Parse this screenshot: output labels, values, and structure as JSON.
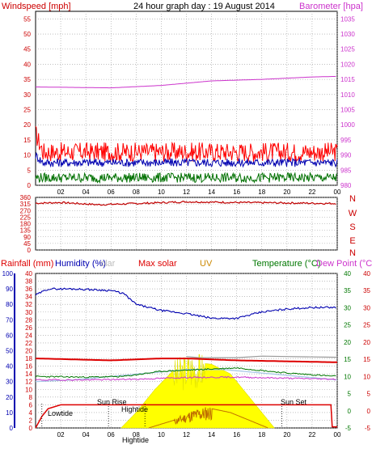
{
  "header": {
    "left_label": "Windspeed [mph]",
    "title": "24 hour graph day : 19 August 2014",
    "right_label": "Barometer [hpa]"
  },
  "rain_panel_labels": {
    "rainfall": "Rainfall (mm)",
    "humidity": "Humidity (%)",
    "solar": "olar",
    "max_solar": "Max solar",
    "uv": "UV",
    "temperature": "Temperature (°C)",
    "dew_point": "Dew Point (°C)"
  },
  "events": {
    "lowtide": "Lowtide",
    "sun_rise": "Sun Rise",
    "hightide": "Hightide",
    "sun_set": "Sun Set",
    "hightide2": "Hightide"
  },
  "colors": {
    "wind_gust": "#ff0000",
    "wind_avg": "#0000b0",
    "wind_low": "#007000",
    "barometer": "#cc33cc",
    "direction": "#c00000",
    "humidity": "#0000b0",
    "rainfall": "#dd0000",
    "max_solar": "#dd0000",
    "solar": "#ffff00",
    "uv": "#c07000",
    "temperature": "#007700",
    "dew_point": "#cc33cc",
    "light_blue": "#a8c8e8",
    "grey": "#999999"
  },
  "chart_data": [
    {
      "type": "line",
      "panel": "wind-barometer",
      "x_ticks": [
        "02",
        "04",
        "06",
        "08",
        "10",
        "12",
        "14",
        "16",
        "18",
        "20",
        "22",
        "00"
      ],
      "left_axis": {
        "label": "Windspeed [mph]",
        "ticks": [
          0,
          5,
          10,
          15,
          20,
          25,
          30,
          35,
          40,
          45,
          50,
          55
        ],
        "ylim": [
          0,
          57.5
        ]
      },
      "right_axis": {
        "label": "Barometer [hpa]",
        "ticks": [
          980,
          985,
          990,
          995,
          1000,
          1005,
          1010,
          1015,
          1020,
          1025,
          1030,
          1035
        ],
        "ylim": [
          980,
          1037.5
        ]
      },
      "series": [
        {
          "name": "gust",
          "baseline": 11,
          "noise": 3.2,
          "axis": "left",
          "color": "#ff0000"
        },
        {
          "name": "average",
          "baseline": 7.5,
          "noise": 1.4,
          "axis": "left",
          "color": "#0000b0"
        },
        {
          "name": "low",
          "baseline": 2.5,
          "noise": 1.6,
          "axis": "left",
          "color": "#007000"
        },
        {
          "name": "barometer",
          "points": [
            [
              0,
              1012.5
            ],
            [
              6,
              1012.2
            ],
            [
              10,
              1013
            ],
            [
              14,
              1014.5
            ],
            [
              18,
              1015
            ],
            [
              22,
              1015.8
            ],
            [
              24,
              1016
            ]
          ],
          "axis": "right",
          "color": "#cc33cc"
        }
      ]
    },
    {
      "type": "line",
      "panel": "wind-direction",
      "x_ticks": [
        "02",
        "04",
        "06",
        "08",
        "10",
        "12",
        "14",
        "16",
        "18",
        "20",
        "22",
        "00"
      ],
      "left_axis": {
        "ticks": [
          0,
          45,
          90,
          135,
          180,
          225,
          270,
          315,
          360
        ],
        "ylim": [
          0,
          360
        ]
      },
      "right_axis_labels": [
        "N",
        "W",
        "S",
        "E",
        "N"
      ],
      "series": [
        {
          "name": "direction",
          "points": [
            [
              0,
              320
            ],
            [
              2,
              325
            ],
            [
              5,
              310
            ],
            [
              8,
              318
            ],
            [
              12,
              330
            ],
            [
              16,
              325
            ],
            [
              20,
              322
            ],
            [
              24,
              318
            ]
          ],
          "color": "#c00000"
        }
      ]
    },
    {
      "type": "line",
      "panel": "rain-temp-solar",
      "x_ticks": [
        "02",
        "04",
        "06",
        "08",
        "10",
        "12",
        "14",
        "16",
        "18",
        "20",
        "22",
        "00"
      ],
      "axis_rainfall": {
        "ticks": [
          0,
          2,
          4,
          6,
          8,
          10,
          12,
          14,
          16,
          18,
          20,
          22,
          24,
          26,
          28,
          30,
          32,
          34,
          36,
          38,
          40
        ],
        "ylim": [
          0,
          40
        ]
      },
      "axis_humidity": {
        "ticks": [
          0,
          10,
          20,
          30,
          40,
          50,
          60,
          70,
          80,
          90,
          100
        ],
        "ylim": [
          0,
          100
        ]
      },
      "axis_temperature": {
        "ticks": [
          -5,
          0,
          5,
          10,
          15,
          20,
          25,
          30,
          35,
          40
        ],
        "ylim": [
          -5,
          40
        ]
      },
      "axis_dewpoint": {
        "ticks": [
          -5,
          0,
          5,
          10,
          15,
          20,
          25,
          30,
          35,
          40
        ],
        "ylim": [
          -5,
          40
        ]
      },
      "series": [
        {
          "name": "humidity",
          "points": [
            [
              0,
              86
            ],
            [
              1,
              90
            ],
            [
              3,
              90
            ],
            [
              6,
              89
            ],
            [
              7,
              87
            ],
            [
              8,
              80
            ],
            [
              10,
              76
            ],
            [
              12,
              74
            ],
            [
              14,
              71
            ],
            [
              16,
              71
            ],
            [
              18,
              75
            ],
            [
              20,
              77
            ],
            [
              22,
              78
            ],
            [
              24,
              78
            ]
          ]
        },
        {
          "name": "rainfall",
          "points": [
            [
              0,
              0
            ],
            [
              0.5,
              3
            ],
            [
              1,
              5
            ],
            [
              2,
              6
            ],
            [
              4,
              6
            ],
            [
              12,
              6
            ],
            [
              21.5,
              6
            ],
            [
              23.5,
              6
            ],
            [
              23.6,
              0.3
            ],
            [
              24,
              0.3
            ]
          ]
        },
        {
          "name": "max_solar",
          "points": [
            [
              0,
              18
            ],
            [
              6,
              17.5
            ],
            [
              10,
              18
            ],
            [
              12,
              18
            ],
            [
              16,
              17.5
            ],
            [
              24,
              17
            ]
          ]
        },
        {
          "name": "solar",
          "points": [
            [
              6.8,
              0
            ],
            [
              8,
              4
            ],
            [
              9.5,
              10
            ],
            [
              11,
              15
            ],
            [
              12.5,
              17
            ],
            [
              14,
              16.5
            ],
            [
              15.5,
              14
            ],
            [
              17,
              8
            ],
            [
              18.5,
              2
            ],
            [
              19,
              0
            ]
          ]
        },
        {
          "name": "uv",
          "points": [
            [
              9,
              0
            ],
            [
              11,
              2
            ],
            [
              12.5,
              4
            ],
            [
              14,
              5
            ],
            [
              15.5,
              4
            ],
            [
              17,
              2
            ],
            [
              18.5,
              0
            ]
          ]
        },
        {
          "name": "temperature",
          "points": [
            [
              0,
              10
            ],
            [
              4,
              9.8
            ],
            [
              7,
              10
            ],
            [
              10,
              11.5
            ],
            [
              13,
              12
            ],
            [
              16,
              12.5
            ],
            [
              20,
              11
            ],
            [
              24,
              10
            ]
          ]
        },
        {
          "name": "dew_point",
          "points": [
            [
              0,
              9
            ],
            [
              4,
              9
            ],
            [
              8,
              9.2
            ],
            [
              12,
              9.7
            ],
            [
              16,
              9.8
            ],
            [
              20,
              9.5
            ],
            [
              24,
              9.2
            ]
          ]
        },
        {
          "name": "light_blue",
          "points": [
            [
              0,
              8.5
            ],
            [
              3,
              9
            ],
            [
              6,
              10
            ],
            [
              9,
              11
            ],
            [
              12,
              12
            ],
            [
              15,
              12
            ],
            [
              18,
              11
            ],
            [
              21,
              10
            ],
            [
              24,
              9
            ]
          ]
        }
      ]
    }
  ]
}
